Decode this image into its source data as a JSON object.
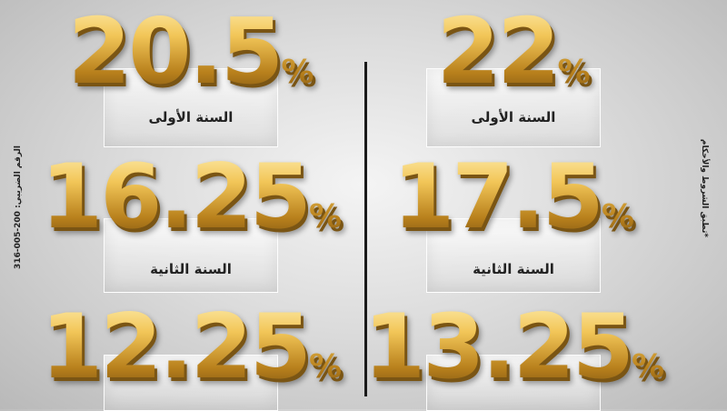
{
  "columns": [
    {
      "rates": [
        "20.5",
        "16.25",
        "12.25"
      ],
      "year_labels": [
        "السنة الأولى",
        "السنة الثانية"
      ]
    },
    {
      "rates": [
        "22",
        "17.5",
        "13.25"
      ],
      "year_labels": [
        "السنة الأولى",
        "السنة الثانية"
      ]
    }
  ],
  "percent_sign": "%",
  "tax_number": "الرقم الضريبي: 200-005-316",
  "terms": "*تطبق الشروط والأحكام",
  "colors": {
    "gold": "#d9a533",
    "background": "#d8d8d8",
    "divider": "#1a1a1a"
  }
}
